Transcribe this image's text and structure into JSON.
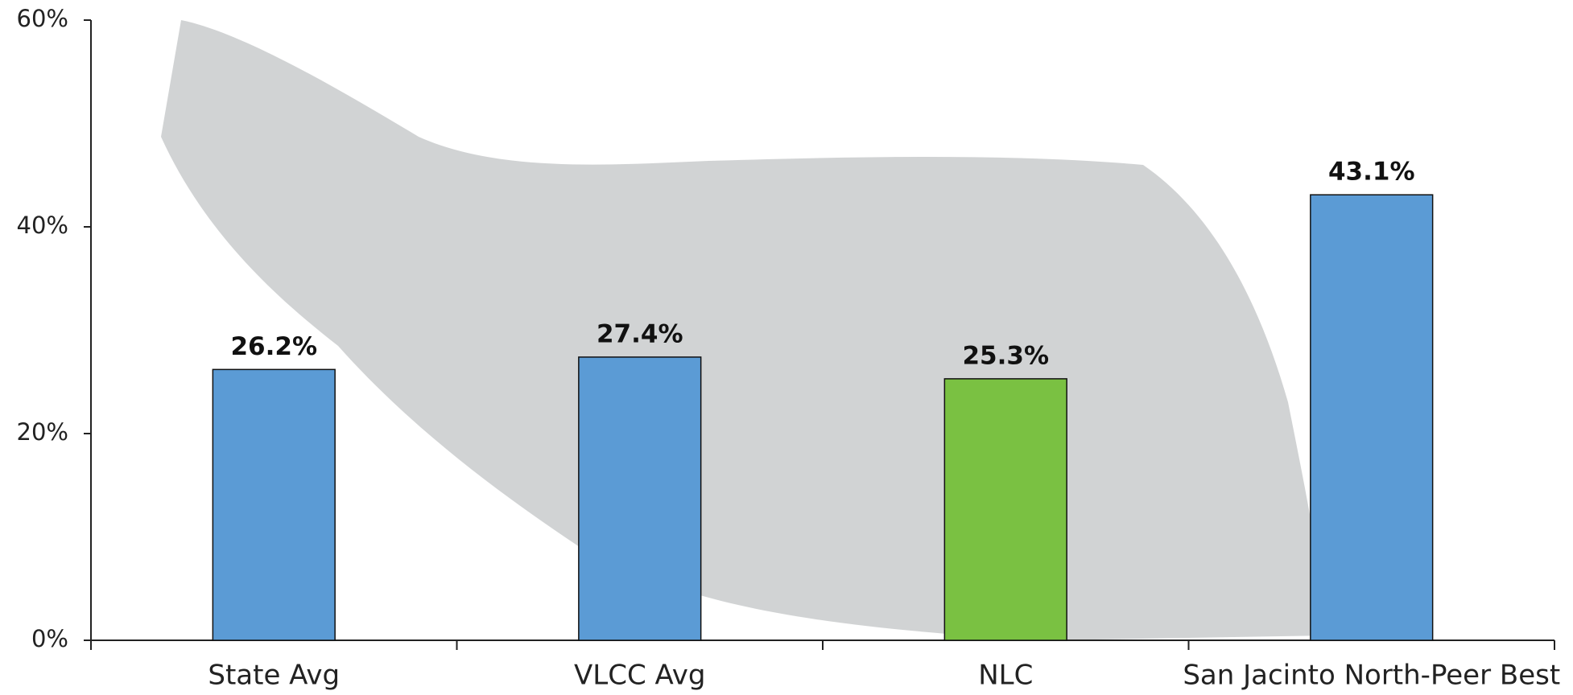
{
  "chart_data": {
    "type": "bar",
    "categories": [
      "State Avg",
      "VLCC Avg",
      "NLC",
      "San Jacinto North-Peer Best"
    ],
    "values": [
      26.2,
      27.4,
      25.3,
      43.1
    ],
    "value_labels": [
      "26.2%",
      "27.4%",
      "25.3%",
      "43.1%"
    ],
    "colors": [
      "#5b9bd5",
      "#5b9bd5",
      "#7ac142",
      "#5b9bd5"
    ],
    "ylim": [
      0,
      60
    ],
    "yticks": [
      {
        "value": 0,
        "label": "0%"
      },
      {
        "value": 20,
        "label": "20%"
      },
      {
        "value": 40,
        "label": "40%"
      },
      {
        "value": 60,
        "label": "60%"
      }
    ],
    "grid": false
  }
}
